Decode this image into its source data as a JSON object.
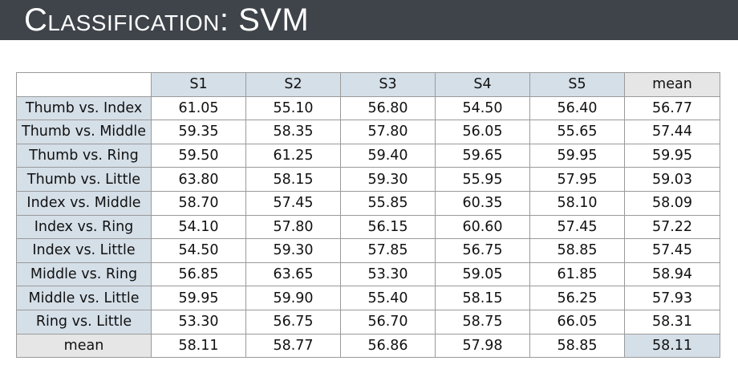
{
  "title": "Classification: SVM",
  "table": {
    "columns": [
      "S1",
      "S2",
      "S3",
      "S4",
      "S5",
      "mean"
    ],
    "rows": [
      {
        "label": "Thumb vs. Index",
        "values": [
          "61.05",
          "55.10",
          "56.80",
          "54.50",
          "56.40",
          "56.77"
        ]
      },
      {
        "label": "Thumb vs. Middle",
        "values": [
          "59.35",
          "58.35",
          "57.80",
          "56.05",
          "55.65",
          "57.44"
        ]
      },
      {
        "label": "Thumb vs. Ring",
        "values": [
          "59.50",
          "61.25",
          "59.40",
          "59.65",
          "59.95",
          "59.95"
        ]
      },
      {
        "label": "Thumb vs. Little",
        "values": [
          "63.80",
          "58.15",
          "59.30",
          "55.95",
          "57.95",
          "59.03"
        ]
      },
      {
        "label": "Index vs. Middle",
        "values": [
          "58.70",
          "57.45",
          "55.85",
          "60.35",
          "58.10",
          "58.09"
        ]
      },
      {
        "label": "Index vs. Ring",
        "values": [
          "54.10",
          "57.80",
          "56.15",
          "60.60",
          "57.45",
          "57.22"
        ]
      },
      {
        "label": "Index vs. Little",
        "values": [
          "54.50",
          "59.30",
          "57.85",
          "56.75",
          "58.85",
          "57.45"
        ]
      },
      {
        "label": "Middle vs. Ring",
        "values": [
          "56.85",
          "63.65",
          "53.30",
          "59.05",
          "61.85",
          "58.94"
        ]
      },
      {
        "label": "Middle vs. Little",
        "values": [
          "59.95",
          "59.90",
          "55.40",
          "58.15",
          "56.25",
          "57.93"
        ]
      },
      {
        "label": "Ring vs. Little",
        "values": [
          "53.30",
          "56.75",
          "56.70",
          "58.75",
          "66.05",
          "58.31"
        ]
      },
      {
        "label": "mean",
        "values": [
          "58.11",
          "58.77",
          "56.86",
          "57.98",
          "58.85",
          "58.11"
        ]
      }
    ]
  },
  "colors": {
    "title_bar": "#3f444a",
    "header_fill": "#d5dfe8",
    "mean_fill": "#e6e6e6",
    "border": "#9a9a9a"
  }
}
